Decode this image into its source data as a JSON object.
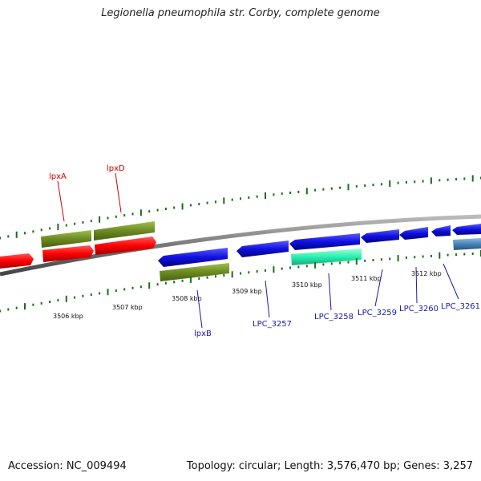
{
  "title": "Legionella pneumophila str. Corby, complete genome",
  "footer": {
    "accession": "Accession: NC_009494",
    "summary": "Topology: circular; Length: 3,576,470 bp; Genes: 3,257"
  },
  "colors": {
    "forward_gene": "#e8001c",
    "reverse_gene": "#1a12d6",
    "cds_olive": "#6d8a22",
    "highlight_cyan": "#28f0b0",
    "steelblue": "#4682b4",
    "backbone": "#777777",
    "tick": "#1a6e1a",
    "label_red": "#d40000",
    "label_blue": "#1a1aa8"
  },
  "axis": {
    "ticks": [
      {
        "label": "3506 kbp"
      },
      {
        "label": "3507 kbp"
      },
      {
        "label": "3508 kbp"
      },
      {
        "label": "3509 kbp"
      },
      {
        "label": "3510 kbp"
      },
      {
        "label": "3511 kbp"
      },
      {
        "label": "3512 kbp"
      }
    ]
  },
  "gene_labels": {
    "lpxA": "lpxA",
    "lpxD": "lpxD",
    "lpxB": "lpxB",
    "LPC_3257": "LPC_3257",
    "LPC_3258": "LPC_3258",
    "LPC_3259": "LPC_3259",
    "LPC_3260": "LPC_3260",
    "LPC_3261": "LPC_3261"
  }
}
